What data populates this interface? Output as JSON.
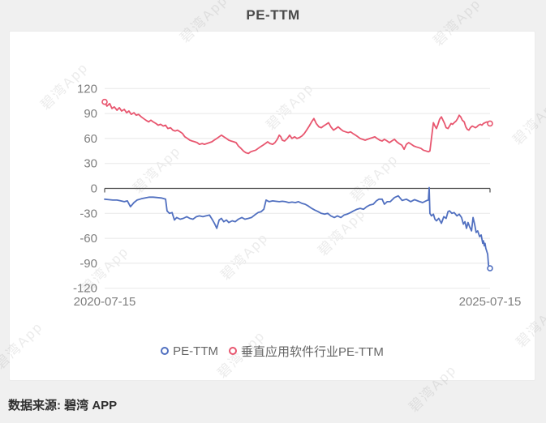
{
  "header": {
    "title": "PE-TTM"
  },
  "footer": {
    "source_note": "数据来源: 碧湾 APP"
  },
  "watermark": {
    "text": "碧湾App"
  },
  "legend": {
    "items": [
      {
        "label": "PE-TTM",
        "color": "#5170c0"
      },
      {
        "label": "垂直应用软件行业PE-TTM",
        "color": "#e8566f"
      }
    ]
  },
  "chart_data": {
    "type": "line",
    "title": "PE-TTM",
    "x_axis": {
      "start": "2020-07-15",
      "end": "2025-07-15",
      "tick_labels": [
        "2020-07-15",
        "2025-07-15"
      ],
      "point_x_encoding": "fraction 0-1 of span 2020-07-15 to 2025-07-15"
    },
    "y_axis": {
      "min": -120,
      "max": 120,
      "ticks": [
        120,
        90,
        60,
        30,
        0,
        -30,
        -60,
        -90,
        -120
      ]
    },
    "grid": true,
    "legend_position": "bottom",
    "colors": {
      "pettm_line": "#5170c0",
      "industry_line": "#e8566f",
      "gridline": "#e8e8e8",
      "zero_axis": "#4d4d4d",
      "axis_label": "#7e7e7e",
      "background": "#f0f0f0",
      "card": "#ffffff"
    },
    "series": [
      {
        "name": "PE-TTM",
        "color": "#5170c0",
        "markers": {
          "start": false,
          "end": true
        },
        "points": [
          [
            0,
            -13
          ],
          [
            0.011,
            -13.5
          ],
          [
            0.021,
            -14
          ],
          [
            0.032,
            -14
          ],
          [
            0.042,
            -15
          ],
          [
            0.051,
            -16
          ],
          [
            0.059,
            -15
          ],
          [
            0.067,
            -22
          ],
          [
            0.076,
            -17
          ],
          [
            0.084,
            -14
          ],
          [
            0.095,
            -12.5
          ],
          [
            0.105,
            -11.5
          ],
          [
            0.116,
            -10.5
          ],
          [
            0.126,
            -10.5
          ],
          [
            0.137,
            -11
          ],
          [
            0.147,
            -11.5
          ],
          [
            0.158,
            -13
          ],
          [
            0.162,
            -27
          ],
          [
            0.168,
            -30
          ],
          [
            0.175,
            -29
          ],
          [
            0.181,
            -38
          ],
          [
            0.187,
            -35
          ],
          [
            0.196,
            -37
          ],
          [
            0.204,
            -36
          ],
          [
            0.213,
            -34
          ],
          [
            0.221,
            -36
          ],
          [
            0.229,
            -37
          ],
          [
            0.238,
            -34
          ],
          [
            0.246,
            -33
          ],
          [
            0.255,
            -34
          ],
          [
            0.263,
            -33
          ],
          [
            0.272,
            -32
          ],
          [
            0.28,
            -38
          ],
          [
            0.286,
            -43
          ],
          [
            0.291,
            -48
          ],
          [
            0.297,
            -38
          ],
          [
            0.303,
            -36
          ],
          [
            0.309,
            -40
          ],
          [
            0.316,
            -38
          ],
          [
            0.322,
            -41
          ],
          [
            0.331,
            -39
          ],
          [
            0.339,
            -40
          ],
          [
            0.347,
            -37
          ],
          [
            0.356,
            -35
          ],
          [
            0.364,
            -37
          ],
          [
            0.373,
            -36
          ],
          [
            0.381,
            -35
          ],
          [
            0.389,
            -32
          ],
          [
            0.398,
            -29
          ],
          [
            0.406,
            -28
          ],
          [
            0.413,
            -25
          ],
          [
            0.419,
            -14
          ],
          [
            0.427,
            -16
          ],
          [
            0.436,
            -15
          ],
          [
            0.444,
            -15.5
          ],
          [
            0.453,
            -16
          ],
          [
            0.461,
            -15.5
          ],
          [
            0.469,
            -16
          ],
          [
            0.478,
            -17
          ],
          [
            0.486,
            -16.5
          ],
          [
            0.495,
            -17
          ],
          [
            0.503,
            -16
          ],
          [
            0.512,
            -18
          ],
          [
            0.52,
            -19
          ],
          [
            0.528,
            -21
          ],
          [
            0.537,
            -24
          ],
          [
            0.545,
            -26
          ],
          [
            0.554,
            -28
          ],
          [
            0.562,
            -30
          ],
          [
            0.571,
            -31
          ],
          [
            0.579,
            -30
          ],
          [
            0.587,
            -33
          ],
          [
            0.596,
            -35
          ],
          [
            0.604,
            -33
          ],
          [
            0.613,
            -35
          ],
          [
            0.621,
            -32
          ],
          [
            0.629,
            -31
          ],
          [
            0.638,
            -29
          ],
          [
            0.646,
            -27
          ],
          [
            0.655,
            -25
          ],
          [
            0.663,
            -24
          ],
          [
            0.672,
            -25
          ],
          [
            0.68,
            -22
          ],
          [
            0.688,
            -20
          ],
          [
            0.697,
            -19
          ],
          [
            0.705,
            -15
          ],
          [
            0.712,
            -13
          ],
          [
            0.72,
            -13
          ],
          [
            0.726,
            -19
          ],
          [
            0.733,
            -16
          ],
          [
            0.741,
            -16
          ],
          [
            0.752,
            -11
          ],
          [
            0.762,
            -9
          ],
          [
            0.772,
            -14.5
          ],
          [
            0.783,
            -13
          ],
          [
            0.794,
            -16
          ],
          [
            0.804,
            -13.5
          ],
          [
            0.815,
            -15.5
          ],
          [
            0.825,
            -17
          ],
          [
            0.836,
            -14.5
          ],
          [
            0.84,
            -14
          ],
          [
            0.842,
            1
          ],
          [
            0.844,
            -30
          ],
          [
            0.848,
            -33
          ],
          [
            0.853,
            -31
          ],
          [
            0.857,
            -37
          ],
          [
            0.861,
            -39
          ],
          [
            0.867,
            -36
          ],
          [
            0.874,
            -42
          ],
          [
            0.88,
            -34
          ],
          [
            0.886,
            -36
          ],
          [
            0.891,
            -28
          ],
          [
            0.895,
            -27
          ],
          [
            0.901,
            -30
          ],
          [
            0.907,
            -29
          ],
          [
            0.914,
            -33
          ],
          [
            0.92,
            -31
          ],
          [
            0.926,
            -35
          ],
          [
            0.931,
            -43
          ],
          [
            0.935,
            -40
          ],
          [
            0.939,
            -48
          ],
          [
            0.943,
            -41
          ],
          [
            0.947,
            -46
          ],
          [
            0.952,
            -51
          ],
          [
            0.956,
            -35
          ],
          [
            0.96,
            -43
          ],
          [
            0.964,
            -53
          ],
          [
            0.968,
            -51
          ],
          [
            0.973,
            -58
          ],
          [
            0.977,
            -56
          ],
          [
            0.981,
            -66
          ],
          [
            0.983,
            -63
          ],
          [
            0.985,
            -69
          ],
          [
            0.987,
            -66
          ],
          [
            0.989,
            -72
          ],
          [
            0.994,
            -79
          ],
          [
            0.996,
            -92
          ],
          [
            1,
            -96
          ]
        ]
      },
      {
        "name": "垂直应用软件行业PE-TTM",
        "color": "#e8566f",
        "markers": {
          "start": true,
          "end": true
        },
        "points": [
          [
            0,
            104
          ],
          [
            0.006,
            99
          ],
          [
            0.013,
            102
          ],
          [
            0.019,
            96
          ],
          [
            0.025,
            98
          ],
          [
            0.032,
            94
          ],
          [
            0.038,
            97
          ],
          [
            0.044,
            93
          ],
          [
            0.051,
            95
          ],
          [
            0.057,
            91
          ],
          [
            0.063,
            93
          ],
          [
            0.069,
            89
          ],
          [
            0.076,
            91
          ],
          [
            0.082,
            88
          ],
          [
            0.088,
            89
          ],
          [
            0.095,
            86
          ],
          [
            0.101,
            84
          ],
          [
            0.107,
            82
          ],
          [
            0.114,
            80
          ],
          [
            0.12,
            82
          ],
          [
            0.126,
            80
          ],
          [
            0.133,
            78
          ],
          [
            0.139,
            76
          ],
          [
            0.145,
            77
          ],
          [
            0.152,
            75
          ],
          [
            0.158,
            76
          ],
          [
            0.164,
            72
          ],
          [
            0.171,
            73
          ],
          [
            0.177,
            70
          ],
          [
            0.183,
            69
          ],
          [
            0.189,
            70
          ],
          [
            0.196,
            68
          ],
          [
            0.202,
            66
          ],
          [
            0.208,
            62
          ],
          [
            0.215,
            60
          ],
          [
            0.221,
            58
          ],
          [
            0.227,
            57
          ],
          [
            0.234,
            56
          ],
          [
            0.24,
            55
          ],
          [
            0.246,
            53
          ],
          [
            0.253,
            54
          ],
          [
            0.259,
            53
          ],
          [
            0.265,
            54
          ],
          [
            0.272,
            55
          ],
          [
            0.278,
            56
          ],
          [
            0.284,
            58
          ],
          [
            0.291,
            60
          ],
          [
            0.297,
            62
          ],
          [
            0.303,
            64
          ],
          [
            0.309,
            62
          ],
          [
            0.316,
            60
          ],
          [
            0.322,
            58
          ],
          [
            0.328,
            57
          ],
          [
            0.335,
            56
          ],
          [
            0.341,
            55
          ],
          [
            0.347,
            51
          ],
          [
            0.354,
            48
          ],
          [
            0.36,
            45
          ],
          [
            0.366,
            43
          ],
          [
            0.373,
            42
          ],
          [
            0.379,
            44
          ],
          [
            0.385,
            45
          ],
          [
            0.392,
            46
          ],
          [
            0.398,
            48
          ],
          [
            0.404,
            50
          ],
          [
            0.411,
            52
          ],
          [
            0.417,
            54
          ],
          [
            0.423,
            56
          ],
          [
            0.429,
            54
          ],
          [
            0.436,
            53
          ],
          [
            0.442,
            55
          ],
          [
            0.448,
            59
          ],
          [
            0.453,
            64
          ],
          [
            0.457,
            62
          ],
          [
            0.461,
            58
          ],
          [
            0.467,
            57
          ],
          [
            0.474,
            60
          ],
          [
            0.48,
            64
          ],
          [
            0.486,
            60
          ],
          [
            0.493,
            62
          ],
          [
            0.499,
            60
          ],
          [
            0.505,
            61
          ],
          [
            0.512,
            63
          ],
          [
            0.518,
            66
          ],
          [
            0.524,
            70
          ],
          [
            0.531,
            75
          ],
          [
            0.537,
            80
          ],
          [
            0.543,
            84
          ],
          [
            0.549,
            78
          ],
          [
            0.556,
            74
          ],
          [
            0.562,
            73
          ],
          [
            0.568,
            75
          ],
          [
            0.575,
            77
          ],
          [
            0.581,
            79
          ],
          [
            0.587,
            74
          ],
          [
            0.594,
            70
          ],
          [
            0.6,
            72
          ],
          [
            0.606,
            74
          ],
          [
            0.613,
            71
          ],
          [
            0.619,
            69
          ],
          [
            0.625,
            68
          ],
          [
            0.632,
            67
          ],
          [
            0.638,
            68
          ],
          [
            0.644,
            66
          ],
          [
            0.651,
            64
          ],
          [
            0.657,
            62
          ],
          [
            0.663,
            60
          ],
          [
            0.669,
            59
          ],
          [
            0.676,
            58
          ],
          [
            0.682,
            59
          ],
          [
            0.688,
            60
          ],
          [
            0.695,
            61
          ],
          [
            0.701,
            62
          ],
          [
            0.707,
            60
          ],
          [
            0.714,
            58
          ],
          [
            0.72,
            57
          ],
          [
            0.726,
            59
          ],
          [
            0.733,
            57
          ],
          [
            0.739,
            55
          ],
          [
            0.745,
            57
          ],
          [
            0.752,
            59
          ],
          [
            0.758,
            56
          ],
          [
            0.764,
            54
          ],
          [
            0.771,
            52
          ],
          [
            0.777,
            47
          ],
          [
            0.783,
            53
          ],
          [
            0.789,
            55
          ],
          [
            0.796,
            53
          ],
          [
            0.802,
            51
          ],
          [
            0.808,
            50
          ],
          [
            0.815,
            49
          ],
          [
            0.821,
            48
          ],
          [
            0.827,
            46
          ],
          [
            0.834,
            45
          ],
          [
            0.84,
            44
          ],
          [
            0.844,
            45
          ],
          [
            0.848,
            60
          ],
          [
            0.853,
            79
          ],
          [
            0.857,
            75
          ],
          [
            0.861,
            72
          ],
          [
            0.865,
            77
          ],
          [
            0.869,
            83
          ],
          [
            0.874,
            86
          ],
          [
            0.878,
            82
          ],
          [
            0.882,
            78
          ],
          [
            0.886,
            73
          ],
          [
            0.891,
            72
          ],
          [
            0.895,
            75
          ],
          [
            0.899,
            78
          ],
          [
            0.903,
            77
          ],
          [
            0.907,
            79
          ],
          [
            0.912,
            81
          ],
          [
            0.916,
            84
          ],
          [
            0.92,
            88
          ],
          [
            0.924,
            86
          ],
          [
            0.928,
            82
          ],
          [
            0.933,
            80
          ],
          [
            0.937,
            74
          ],
          [
            0.941,
            71
          ],
          [
            0.945,
            70
          ],
          [
            0.949,
            73
          ],
          [
            0.954,
            75
          ],
          [
            0.958,
            74
          ],
          [
            0.962,
            73
          ],
          [
            0.966,
            74
          ],
          [
            0.97,
            76
          ],
          [
            0.975,
            77
          ],
          [
            0.979,
            76
          ],
          [
            0.983,
            78
          ],
          [
            0.987,
            79
          ],
          [
            0.992,
            80
          ],
          [
            0.996,
            79
          ],
          [
            1,
            78
          ]
        ]
      }
    ]
  }
}
